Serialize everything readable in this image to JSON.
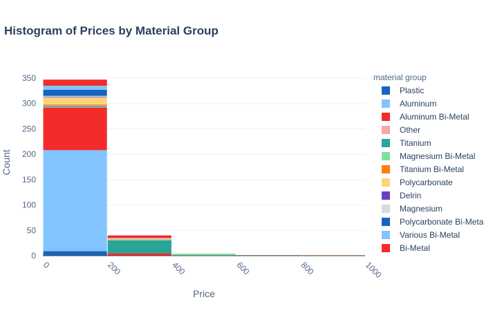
{
  "chart_data": {
    "type": "bar",
    "title": "Histogram of Prices by Material Group",
    "xlabel": "Price",
    "ylabel": "Count",
    "xlim": [
      0,
      1000
    ],
    "ylim": [
      0,
      350
    ],
    "x_ticks": [
      "0",
      "200",
      "400",
      "600",
      "800",
      "1000"
    ],
    "y_ticks": [
      "0",
      "50",
      "100",
      "150",
      "200",
      "250",
      "300",
      "350"
    ],
    "bins": [
      {
        "start": 0,
        "end": 200
      },
      {
        "start": 200,
        "end": 400
      },
      {
        "start": 400,
        "end": 600
      },
      {
        "start": 600,
        "end": 800
      },
      {
        "start": 800,
        "end": 1000
      }
    ],
    "legend_title": "material group",
    "legend_position": "right",
    "series": [
      {
        "name": "Plastic",
        "color": "#1565c0",
        "values": [
          9,
          0,
          0,
          0,
          0
        ]
      },
      {
        "name": "Aluminum",
        "color": "#82c4ff",
        "values": [
          199,
          0,
          0,
          0,
          0
        ]
      },
      {
        "name": "Aluminum Bi-Metal",
        "color": "#f42b2b",
        "values": [
          84,
          5,
          0,
          0,
          0
        ]
      },
      {
        "name": "Other",
        "color": "#f7a7a7",
        "values": [
          1,
          0,
          0,
          0,
          0
        ]
      },
      {
        "name": "Titanium",
        "color": "#26a69a",
        "values": [
          2,
          25,
          1,
          0,
          0
        ]
      },
      {
        "name": "Magnesium Bi-Metal",
        "color": "#7ee0a3",
        "values": [
          1,
          1,
          3,
          0,
          0
        ]
      },
      {
        "name": "Titanium Bi-Metal",
        "color": "#ff7f0e",
        "values": [
          2,
          1,
          0,
          0,
          1
        ]
      },
      {
        "name": "Polycarbonate",
        "color": "#ffd37a",
        "values": [
          14,
          1,
          0,
          0,
          0
        ]
      },
      {
        "name": "Delrin",
        "color": "#6a3fbf",
        "values": [
          1,
          0,
          0,
          0,
          0
        ]
      },
      {
        "name": "Magnesium",
        "color": "#d5dae3",
        "values": [
          2,
          1,
          0,
          0,
          0
        ]
      },
      {
        "name": "Polycarbonate Bi-Metal",
        "color": "#1565c0",
        "values": [
          12,
          0,
          0,
          1,
          0
        ]
      },
      {
        "name": "Various Bi-Metal",
        "color": "#82c4ff",
        "values": [
          8,
          1,
          0,
          0,
          0
        ]
      },
      {
        "name": "Bi-Metal",
        "color": "#f42b2b",
        "values": [
          12,
          5,
          0,
          0,
          0
        ]
      }
    ]
  }
}
